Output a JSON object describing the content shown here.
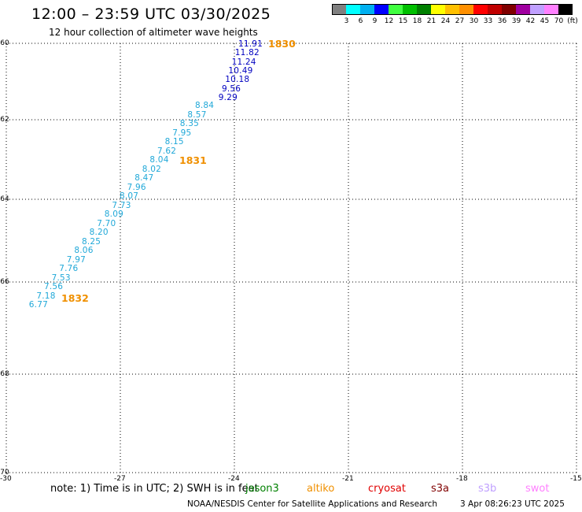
{
  "title": "12:00 – 23:59 UTC 03/30/2025",
  "subtitle": "12 hour collection of altimeter wave heights",
  "colorbar": {
    "unit_label": "(ft)",
    "colors": [
      "#808080",
      "#00ffff",
      "#00b0f0",
      "#0000ff",
      "#40ff40",
      "#00c000",
      "#008000",
      "#ffff00",
      "#ffc000",
      "#ff9000",
      "#ff0000",
      "#c00000",
      "#800000",
      "#a000a0",
      "#c0a0ff",
      "#ff80ff",
      "#000000"
    ],
    "labels": [
      "3",
      "6",
      "9",
      "12",
      "15",
      "18",
      "21",
      "24",
      "27",
      "30",
      "33",
      "36",
      "39",
      "42",
      "45",
      "70"
    ]
  },
  "axes": {
    "lat_ticks": [
      "-60",
      "-62",
      "-64",
      "-66",
      "-68",
      "-70"
    ],
    "lon_ticks": [
      "-30",
      "-27",
      "-24",
      "-21",
      "-18",
      "-15"
    ]
  },
  "track": {
    "color_blue": "#0000c0",
    "color_cyan": "#20a8d8",
    "swh_blue": [
      "11.91",
      "11.82",
      "11.24",
      "10.49",
      "10.18",
      "9.56",
      "9.29"
    ],
    "swh_cyan": [
      "8.84",
      "8.57",
      "8.35",
      "7.95",
      "8.15",
      "7.62",
      "8.04",
      "8.02",
      "8.47",
      "7.96",
      "8.07",
      "7.73",
      "8.09",
      "7.70",
      "8.20",
      "8.25",
      "8.06",
      "7.97",
      "7.76",
      "7.53",
      "7.56",
      "7.18",
      "6.77"
    ]
  },
  "time_labels": {
    "color": "#f09000",
    "items": [
      "1830",
      "1831",
      "1832"
    ]
  },
  "footer": {
    "note": "note:  1) Time is in UTC;  2) SWH is in feet",
    "satellites": [
      {
        "name": "jason3",
        "color": "#008000"
      },
      {
        "name": "altiko",
        "color": "#f09000"
      },
      {
        "name": "cryosat",
        "color": "#e00000"
      },
      {
        "name": "s3a",
        "color": "#800000"
      },
      {
        "name": "s3b",
        "color": "#c0a0ff"
      },
      {
        "name": "swot",
        "color": "#ff80ff"
      }
    ],
    "credit": "NOAA/NESDIS Center for Satellite Applications and Research",
    "timestamp": "3 Apr 08:26:23 UTC 2025"
  }
}
